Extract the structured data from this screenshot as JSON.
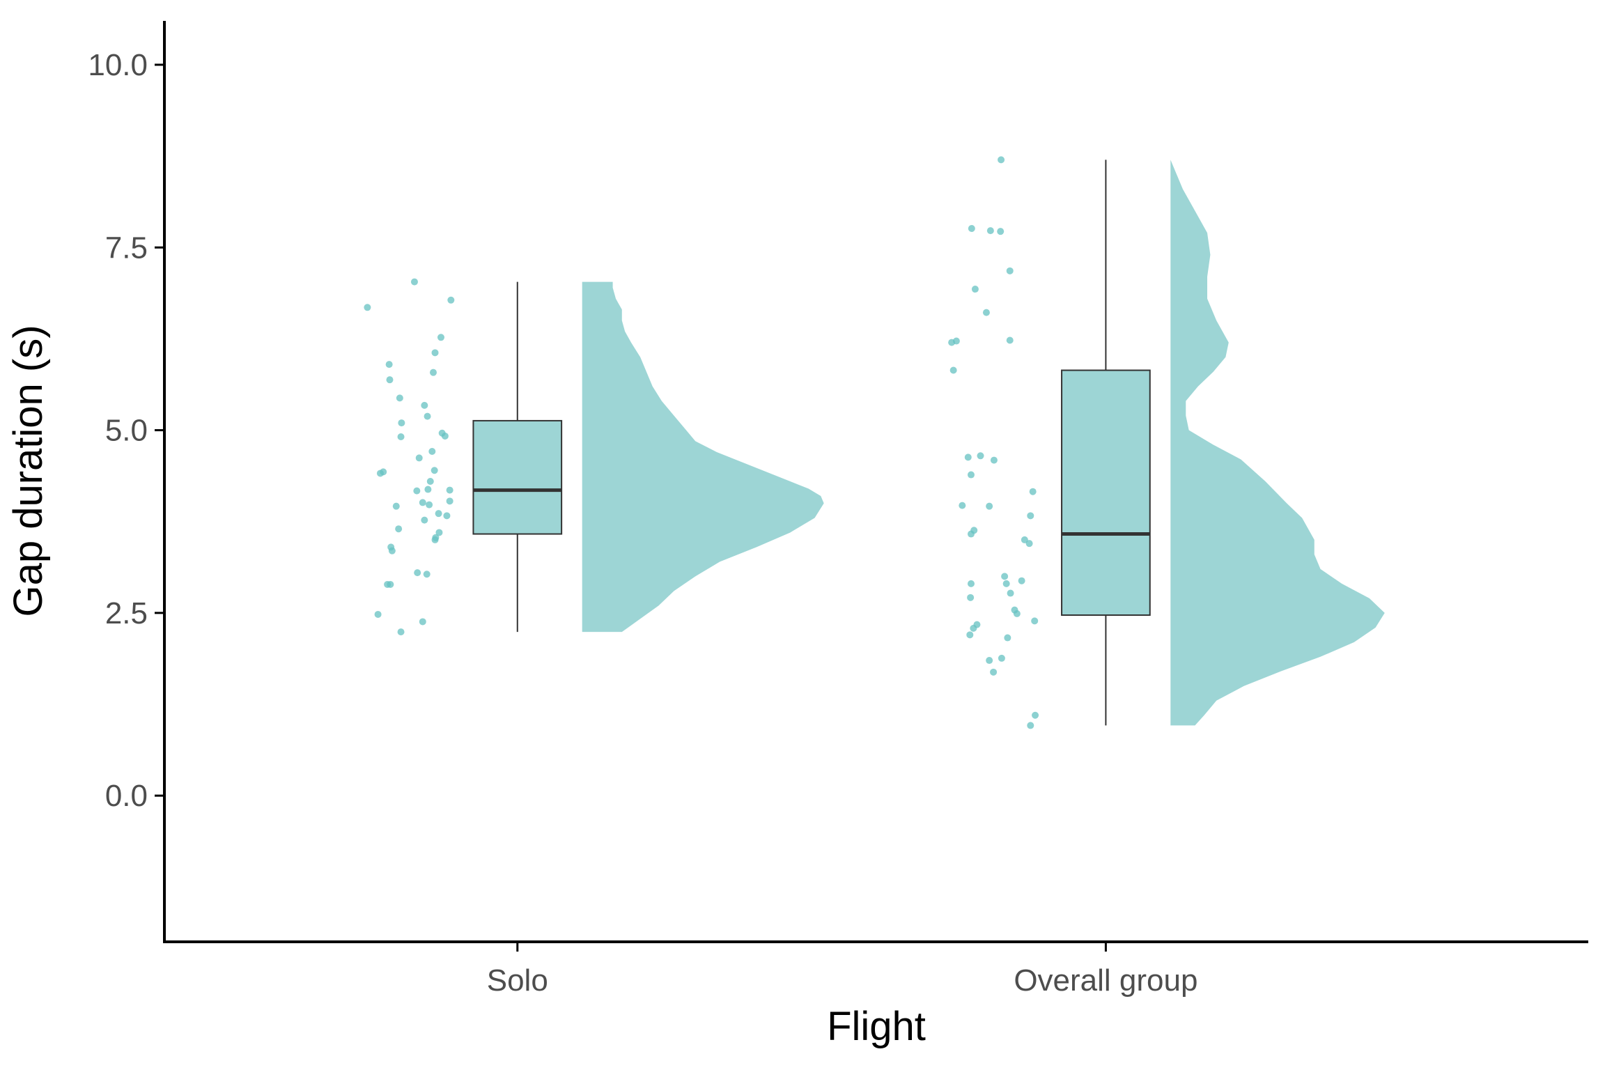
{
  "chart_data": {
    "type": "raincloud",
    "xlabel": "Flight",
    "ylabel": "Gap duration (s)",
    "categories": [
      "Solo",
      "Overall group"
    ],
    "ylim": [
      -2.0,
      10.6
    ],
    "yticks": [
      0.0,
      2.5,
      5.0,
      7.5,
      10.0
    ],
    "ytick_labels": [
      "0.0",
      "2.5",
      "5.0",
      "7.5",
      "10.0"
    ],
    "grid": false,
    "legend": "none",
    "colors": {
      "fill": "#9dd5d5",
      "point": "#66c2c2",
      "box_line": "#333333",
      "axis": "#000000"
    },
    "groups": [
      {
        "name": "Solo",
        "points": [
          {
            "x": -0.255,
            "y": 6.68
          },
          {
            "x": -0.175,
            "y": 7.03
          },
          {
            "x": -0.113,
            "y": 6.78
          },
          {
            "x": -0.13,
            "y": 6.27
          },
          {
            "x": -0.14,
            "y": 6.06
          },
          {
            "x": -0.143,
            "y": 5.79
          },
          {
            "x": -0.218,
            "y": 5.9
          },
          {
            "x": -0.217,
            "y": 5.69
          },
          {
            "x": -0.2,
            "y": 5.44
          },
          {
            "x": -0.158,
            "y": 5.34
          },
          {
            "x": -0.153,
            "y": 5.19
          },
          {
            "x": -0.197,
            "y": 5.1
          },
          {
            "x": -0.128,
            "y": 4.96
          },
          {
            "x": -0.123,
            "y": 4.92
          },
          {
            "x": -0.198,
            "y": 4.91
          },
          {
            "x": -0.145,
            "y": 4.71
          },
          {
            "x": -0.167,
            "y": 4.62
          },
          {
            "x": -0.141,
            "y": 4.45
          },
          {
            "x": -0.228,
            "y": 4.43
          },
          {
            "x": -0.233,
            "y": 4.41
          },
          {
            "x": -0.148,
            "y": 4.3
          },
          {
            "x": -0.152,
            "y": 4.19
          },
          {
            "x": -0.171,
            "y": 4.17
          },
          {
            "x": -0.115,
            "y": 4.18
          },
          {
            "x": -0.115,
            "y": 4.03
          },
          {
            "x": -0.161,
            "y": 4.01
          },
          {
            "x": -0.15,
            "y": 3.98
          },
          {
            "x": -0.206,
            "y": 3.96
          },
          {
            "x": -0.134,
            "y": 3.86
          },
          {
            "x": -0.12,
            "y": 3.83
          },
          {
            "x": -0.158,
            "y": 3.77
          },
          {
            "x": -0.202,
            "y": 3.65
          },
          {
            "x": -0.133,
            "y": 3.6
          },
          {
            "x": -0.139,
            "y": 3.53
          },
          {
            "x": -0.14,
            "y": 3.5
          },
          {
            "x": -0.215,
            "y": 3.4
          },
          {
            "x": -0.213,
            "y": 3.35
          },
          {
            "x": -0.17,
            "y": 3.05
          },
          {
            "x": -0.154,
            "y": 3.03
          },
          {
            "x": -0.221,
            "y": 2.89
          },
          {
            "x": -0.216,
            "y": 2.89
          },
          {
            "x": -0.237,
            "y": 2.48
          },
          {
            "x": -0.161,
            "y": 2.38
          },
          {
            "x": -0.198,
            "y": 2.24
          }
        ],
        "box": {
          "min": 2.24,
          "q1": 3.58,
          "median": 4.18,
          "q3": 5.13,
          "max": 7.03
        },
        "density": [
          [
            2.24,
            0.13
          ],
          [
            2.33,
            0.16
          ],
          [
            2.45,
            0.2
          ],
          [
            2.6,
            0.25
          ],
          [
            2.8,
            0.3
          ],
          [
            3.0,
            0.37
          ],
          [
            3.2,
            0.45
          ],
          [
            3.4,
            0.57
          ],
          [
            3.6,
            0.68
          ],
          [
            3.8,
            0.76
          ],
          [
            4.0,
            0.79
          ],
          [
            4.1,
            0.78
          ],
          [
            4.2,
            0.74
          ],
          [
            4.3,
            0.68
          ],
          [
            4.5,
            0.56
          ],
          [
            4.7,
            0.44
          ],
          [
            4.85,
            0.37
          ],
          [
            5.0,
            0.34
          ],
          [
            5.2,
            0.3
          ],
          [
            5.4,
            0.26
          ],
          [
            5.6,
            0.23
          ],
          [
            5.8,
            0.21
          ],
          [
            6.0,
            0.19
          ],
          [
            6.2,
            0.16
          ],
          [
            6.35,
            0.14
          ],
          [
            6.5,
            0.13
          ],
          [
            6.65,
            0.13
          ],
          [
            6.8,
            0.11
          ],
          [
            6.95,
            0.1
          ],
          [
            7.03,
            0.1
          ]
        ]
      },
      {
        "name": "Overall group",
        "points": [
          {
            "x": -0.178,
            "y": 8.7
          },
          {
            "x": -0.228,
            "y": 7.76
          },
          {
            "x": -0.196,
            "y": 7.73
          },
          {
            "x": -0.179,
            "y": 7.72
          },
          {
            "x": -0.163,
            "y": 7.18
          },
          {
            "x": -0.222,
            "y": 6.93
          },
          {
            "x": -0.203,
            "y": 6.61
          },
          {
            "x": -0.163,
            "y": 6.23
          },
          {
            "x": -0.254,
            "y": 6.22
          },
          {
            "x": -0.262,
            "y": 6.2
          },
          {
            "x": -0.259,
            "y": 5.82
          },
          {
            "x": -0.213,
            "y": 4.65
          },
          {
            "x": -0.234,
            "y": 4.63
          },
          {
            "x": -0.19,
            "y": 4.59
          },
          {
            "x": -0.229,
            "y": 4.39
          },
          {
            "x": -0.124,
            "y": 4.16
          },
          {
            "x": -0.244,
            "y": 3.97
          },
          {
            "x": -0.198,
            "y": 3.96
          },
          {
            "x": -0.128,
            "y": 3.83
          },
          {
            "x": -0.224,
            "y": 3.63
          },
          {
            "x": -0.229,
            "y": 3.58
          },
          {
            "x": -0.138,
            "y": 3.5
          },
          {
            "x": -0.13,
            "y": 3.45
          },
          {
            "x": -0.172,
            "y": 3.0
          },
          {
            "x": -0.143,
            "y": 2.94
          },
          {
            "x": -0.169,
            "y": 2.9
          },
          {
            "x": -0.229,
            "y": 2.9
          },
          {
            "x": -0.162,
            "y": 2.77
          },
          {
            "x": -0.23,
            "y": 2.71
          },
          {
            "x": -0.155,
            "y": 2.54
          },
          {
            "x": -0.151,
            "y": 2.49
          },
          {
            "x": -0.121,
            "y": 2.39
          },
          {
            "x": -0.219,
            "y": 2.34
          },
          {
            "x": -0.225,
            "y": 2.29
          },
          {
            "x": -0.231,
            "y": 2.2
          },
          {
            "x": -0.167,
            "y": 2.16
          },
          {
            "x": -0.177,
            "y": 1.88
          },
          {
            "x": -0.198,
            "y": 1.85
          },
          {
            "x": -0.191,
            "y": 1.69
          },
          {
            "x": -0.12,
            "y": 1.1
          },
          {
            "x": -0.128,
            "y": 0.96
          }
        ],
        "box": {
          "min": 0.96,
          "q1": 2.47,
          "median": 3.58,
          "q3": 5.82,
          "max": 8.7
        },
        "density": [
          [
            0.96,
            0.08
          ],
          [
            1.1,
            0.11
          ],
          [
            1.3,
            0.15
          ],
          [
            1.5,
            0.24
          ],
          [
            1.7,
            0.36
          ],
          [
            1.9,
            0.49
          ],
          [
            2.1,
            0.6
          ],
          [
            2.3,
            0.67
          ],
          [
            2.5,
            0.7
          ],
          [
            2.7,
            0.65
          ],
          [
            2.9,
            0.56
          ],
          [
            3.1,
            0.49
          ],
          [
            3.3,
            0.47
          ],
          [
            3.5,
            0.47
          ],
          [
            3.8,
            0.43
          ],
          [
            4.0,
            0.38
          ],
          [
            4.3,
            0.31
          ],
          [
            4.6,
            0.23
          ],
          [
            4.8,
            0.14
          ],
          [
            5.0,
            0.06
          ],
          [
            5.2,
            0.05
          ],
          [
            5.4,
            0.05
          ],
          [
            5.6,
            0.09
          ],
          [
            5.8,
            0.14
          ],
          [
            6.0,
            0.18
          ],
          [
            6.2,
            0.19
          ],
          [
            6.5,
            0.15
          ],
          [
            6.8,
            0.12
          ],
          [
            7.1,
            0.12
          ],
          [
            7.4,
            0.13
          ],
          [
            7.7,
            0.12
          ],
          [
            8.0,
            0.08
          ],
          [
            8.3,
            0.04
          ],
          [
            8.5,
            0.02
          ],
          [
            8.7,
            0.0
          ]
        ]
      }
    ]
  }
}
